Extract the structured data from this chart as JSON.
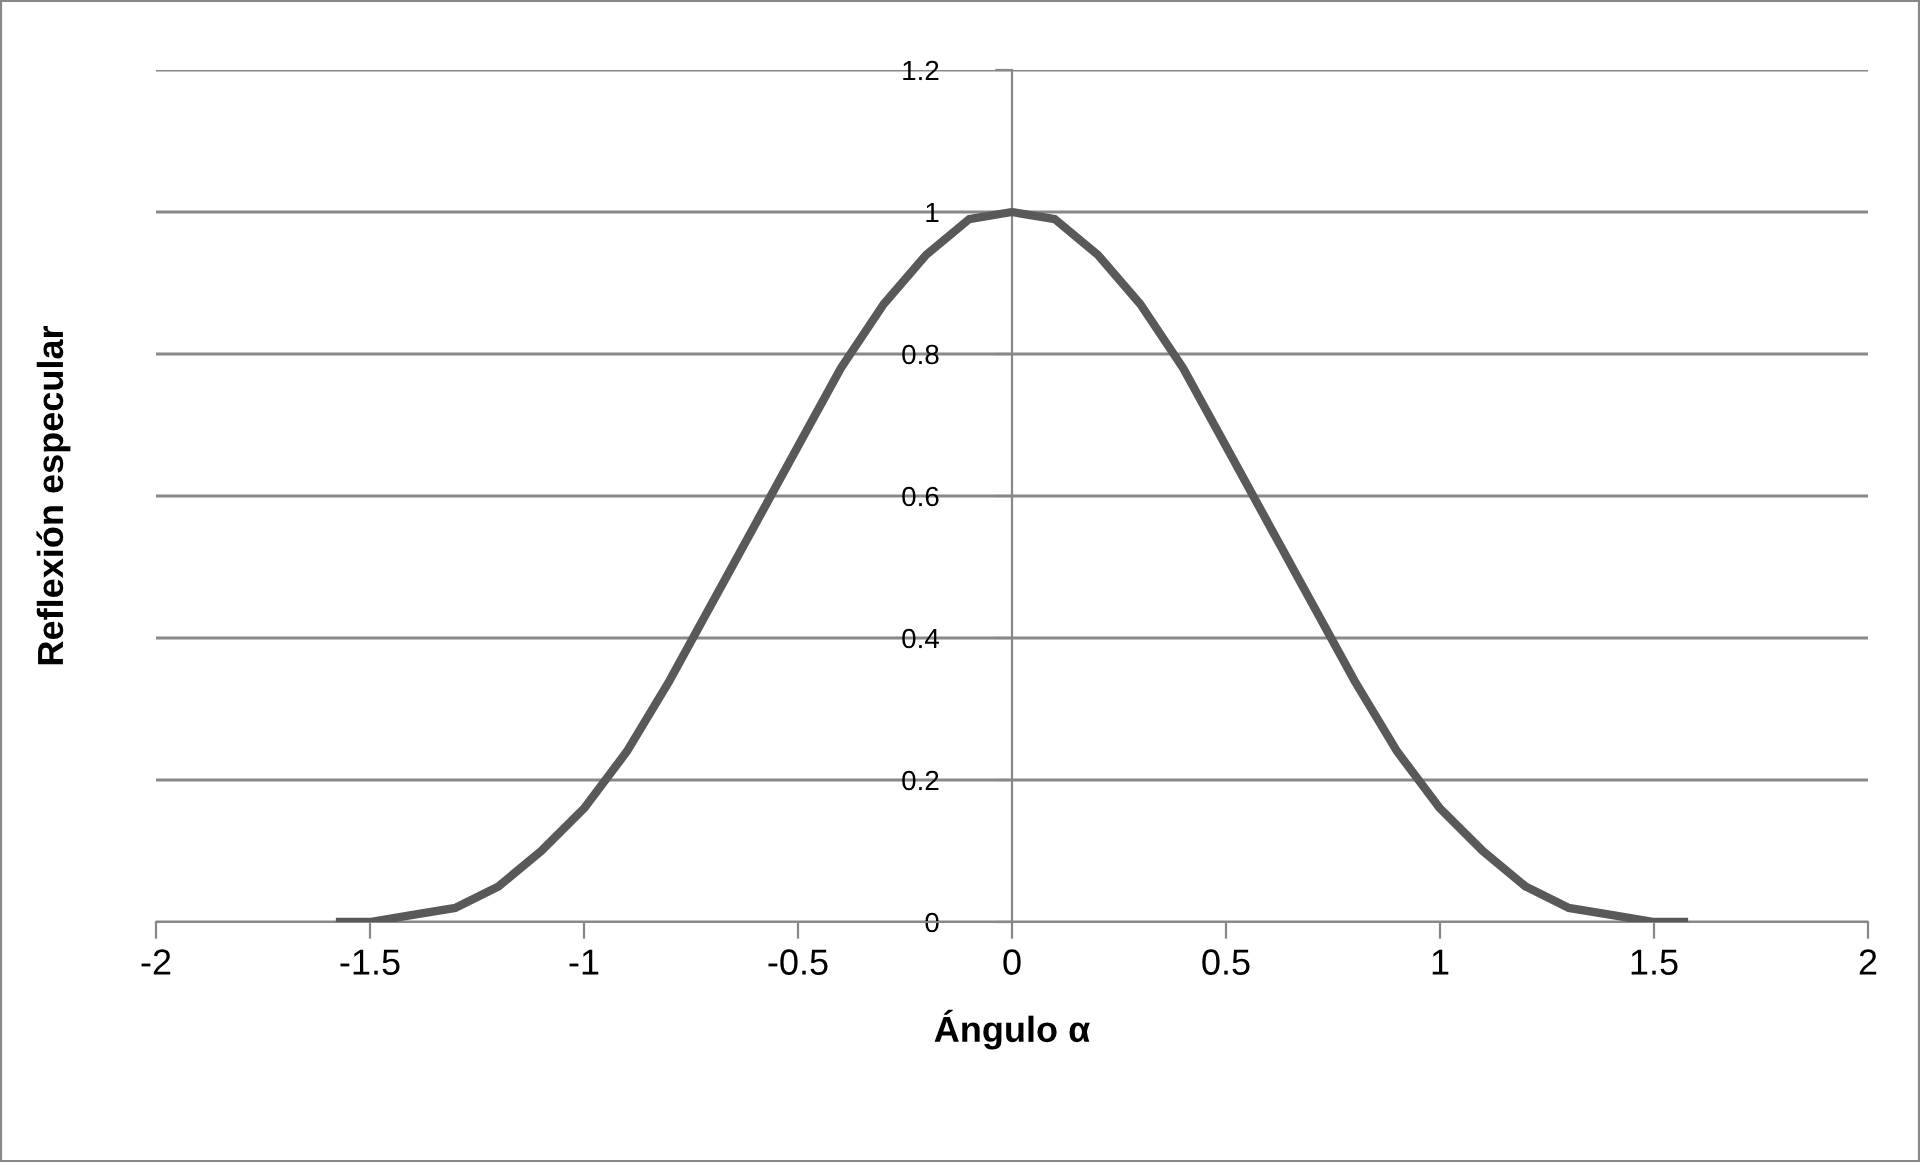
{
  "chart_data": {
    "type": "line",
    "xlabel": "Ángulo α",
    "ylabel": "Reflexión especular",
    "series": [
      {
        "color": "#595959",
        "x": [
          -1.57,
          -1.5,
          -1.4,
          -1.3,
          -1.2,
          -1.1,
          -1.0,
          -0.9,
          -0.8,
          -0.7,
          -0.6,
          -0.5,
          -0.4,
          -0.3,
          -0.2,
          -0.1,
          0.0,
          0.1,
          0.2,
          0.3,
          0.4,
          0.5,
          0.6,
          0.7,
          0.8,
          0.9,
          1.0,
          1.1,
          1.2,
          1.3,
          1.4,
          1.5,
          1.57
        ],
        "values": [
          0.0,
          0.0,
          0.01,
          0.02,
          0.05,
          0.1,
          0.16,
          0.24,
          0.34,
          0.45,
          0.56,
          0.67,
          0.78,
          0.87,
          0.94,
          0.99,
          1.0,
          0.99,
          0.94,
          0.87,
          0.78,
          0.67,
          0.56,
          0.45,
          0.34,
          0.24,
          0.16,
          0.1,
          0.05,
          0.02,
          0.01,
          0.0,
          0.0
        ]
      }
    ],
    "xlim": [
      -2,
      2
    ],
    "xticks": [
      -2,
      -1.5,
      -1,
      -0.5,
      0,
      0.5,
      1,
      1.5,
      2
    ],
    "ylim": [
      0,
      1.2
    ],
    "yticks": [
      0,
      0.2,
      0.4,
      0.6,
      0.8,
      1,
      1.2
    ],
    "grid": "y",
    "marker": "none",
    "line_style": "solid"
  }
}
